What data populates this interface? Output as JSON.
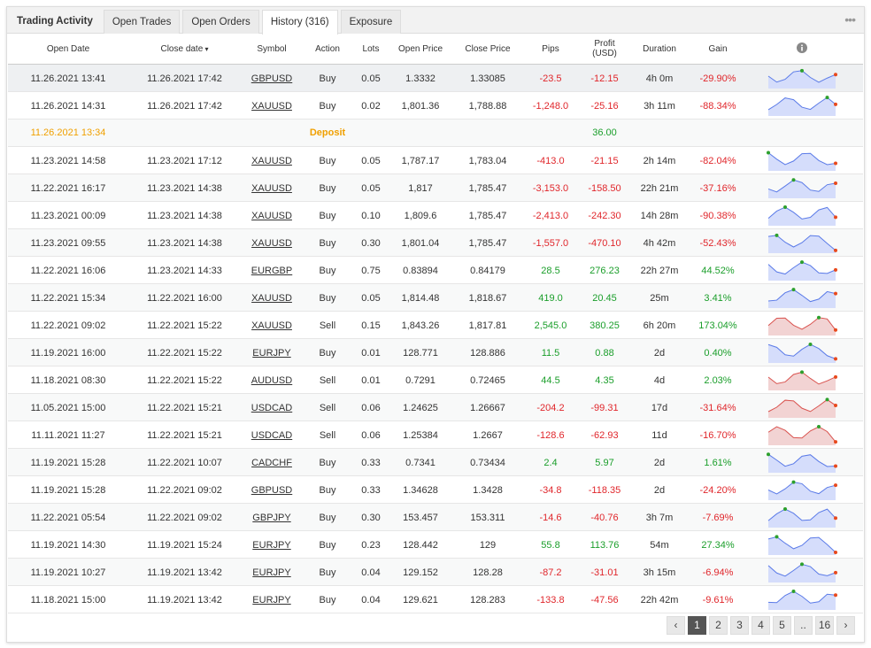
{
  "tabs": [
    {
      "label": "Trading Activity",
      "active": false
    },
    {
      "label": "Open Trades",
      "active": false
    },
    {
      "label": "Open Orders",
      "active": false
    },
    {
      "label": "History (316)",
      "active": true
    },
    {
      "label": "Exposure",
      "active": false
    }
  ],
  "table": {
    "headers": [
      "Open Date",
      "Close date",
      "Symbol",
      "Action",
      "Lots",
      "Open Price",
      "Close Price",
      "Pips",
      "Profit (USD)",
      "Duration",
      "Gain"
    ],
    "rows": [
      {
        "cells": [
          "11.26.2021 13:41",
          "11.26.2021 17:42",
          "GBPUSD",
          "Buy",
          "0.05",
          "1.3332",
          "1.33085",
          "-23.5",
          "-12.15",
          "4h 0m",
          "-29.90%"
        ]
      },
      {
        "cells": [
          "11.26.2021 14:31",
          "11.26.2021 17:42",
          "XAUUSD",
          "Buy",
          "0.02",
          "1,801.36",
          "1,788.88",
          "-1,248.0",
          "-25.16",
          "3h 11m",
          "-88.34%"
        ]
      },
      {
        "deposit": {
          "open_date": "11.26.2021 13:34",
          "action": "Deposit",
          "profit": "36.00"
        }
      },
      {
        "cells": [
          "11.23.2021 14:58",
          "11.23.2021 17:12",
          "XAUUSD",
          "Buy",
          "0.05",
          "1,787.17",
          "1,783.04",
          "-413.0",
          "-21.15",
          "2h 14m",
          "-82.04%"
        ]
      },
      {
        "cells": [
          "11.22.2021 16:17",
          "11.23.2021 14:38",
          "XAUUSD",
          "Buy",
          "0.05",
          "1,817",
          "1,785.47",
          "-3,153.0",
          "-158.50",
          "22h 21m",
          "-37.16%"
        ]
      },
      {
        "cells": [
          "11.23.2021 00:09",
          "11.23.2021 14:38",
          "XAUUSD",
          "Buy",
          "0.10",
          "1,809.6",
          "1,785.47",
          "-2,413.0",
          "-242.30",
          "14h 28m",
          "-90.38%"
        ]
      },
      {
        "cells": [
          "11.23.2021 09:55",
          "11.23.2021 14:38",
          "XAUUSD",
          "Buy",
          "0.30",
          "1,801.04",
          "1,785.47",
          "-1,557.0",
          "-470.10",
          "4h 42m",
          "-52.43%"
        ]
      },
      {
        "cells": [
          "11.22.2021 16:06",
          "11.23.2021 14:33",
          "EURGBP",
          "Buy",
          "0.75",
          "0.83894",
          "0.84179",
          "28.5",
          "276.23",
          "22h 27m",
          "44.52%"
        ]
      },
      {
        "cells": [
          "11.22.2021 15:34",
          "11.22.2021 16:00",
          "XAUUSD",
          "Buy",
          "0.05",
          "1,814.48",
          "1,818.67",
          "419.0",
          "20.45",
          "25m",
          "3.41%"
        ]
      },
      {
        "cells": [
          "11.22.2021 09:02",
          "11.22.2021 15:22",
          "XAUUSD",
          "Sell",
          "0.15",
          "1,843.26",
          "1,817.81",
          "2,545.0",
          "380.25",
          "6h 20m",
          "173.04%"
        ]
      },
      {
        "cells": [
          "11.19.2021 16:00",
          "11.22.2021 15:22",
          "EURJPY",
          "Buy",
          "0.01",
          "128.771",
          "128.886",
          "11.5",
          "0.88",
          "2d",
          "0.40%"
        ]
      },
      {
        "cells": [
          "11.18.2021 08:30",
          "11.22.2021 15:22",
          "AUDUSD",
          "Sell",
          "0.01",
          "0.7291",
          "0.72465",
          "44.5",
          "4.35",
          "4d",
          "2.03%"
        ]
      },
      {
        "cells": [
          "11.05.2021 15:00",
          "11.22.2021 15:21",
          "USDCAD",
          "Sell",
          "0.06",
          "1.24625",
          "1.26667",
          "-204.2",
          "-99.31",
          "17d",
          "-31.64%"
        ]
      },
      {
        "cells": [
          "11.11.2021 11:27",
          "11.22.2021 15:21",
          "USDCAD",
          "Sell",
          "0.06",
          "1.25384",
          "1.2667",
          "-128.6",
          "-62.93",
          "11d",
          "-16.70%"
        ]
      },
      {
        "cells": [
          "11.19.2021 15:28",
          "11.22.2021 10:07",
          "CADCHF",
          "Buy",
          "0.33",
          "0.7341",
          "0.73434",
          "2.4",
          "5.97",
          "2d",
          "1.61%"
        ]
      },
      {
        "cells": [
          "11.19.2021 15:28",
          "11.22.2021 09:02",
          "GBPUSD",
          "Buy",
          "0.33",
          "1.34628",
          "1.3428",
          "-34.8",
          "-118.35",
          "2d",
          "-24.20%"
        ]
      },
      {
        "cells": [
          "11.22.2021 05:54",
          "11.22.2021 09:02",
          "GBPJPY",
          "Buy",
          "0.30",
          "153.457",
          "153.311",
          "-14.6",
          "-40.76",
          "3h 7m",
          "-7.69%"
        ]
      },
      {
        "cells": [
          "11.19.2021 14:30",
          "11.19.2021 15:24",
          "EURJPY",
          "Buy",
          "0.23",
          "128.442",
          "129",
          "55.8",
          "113.76",
          "54m",
          "27.34%"
        ]
      },
      {
        "cells": [
          "11.19.2021 10:27",
          "11.19.2021 13:42",
          "EURJPY",
          "Buy",
          "0.04",
          "129.152",
          "128.28",
          "-87.2",
          "-31.01",
          "3h 15m",
          "-6.94%"
        ]
      },
      {
        "cells": [
          "11.18.2021 15:00",
          "11.19.2021 13:42",
          "EURJPY",
          "Buy",
          "0.04",
          "129.621",
          "128.283",
          "-133.8",
          "-47.56",
          "22h 42m",
          "-9.61%"
        ]
      }
    ]
  },
  "pagination": [
    {
      "label": "1",
      "active": true
    },
    {
      "label": "2",
      "active": false
    },
    {
      "label": "3",
      "active": false
    },
    {
      "label": "4",
      "active": false
    },
    {
      "label": "5",
      "active": false
    },
    {
      "label": "..",
      "active": false
    },
    {
      "label": "16",
      "active": false
    }
  ]
}
